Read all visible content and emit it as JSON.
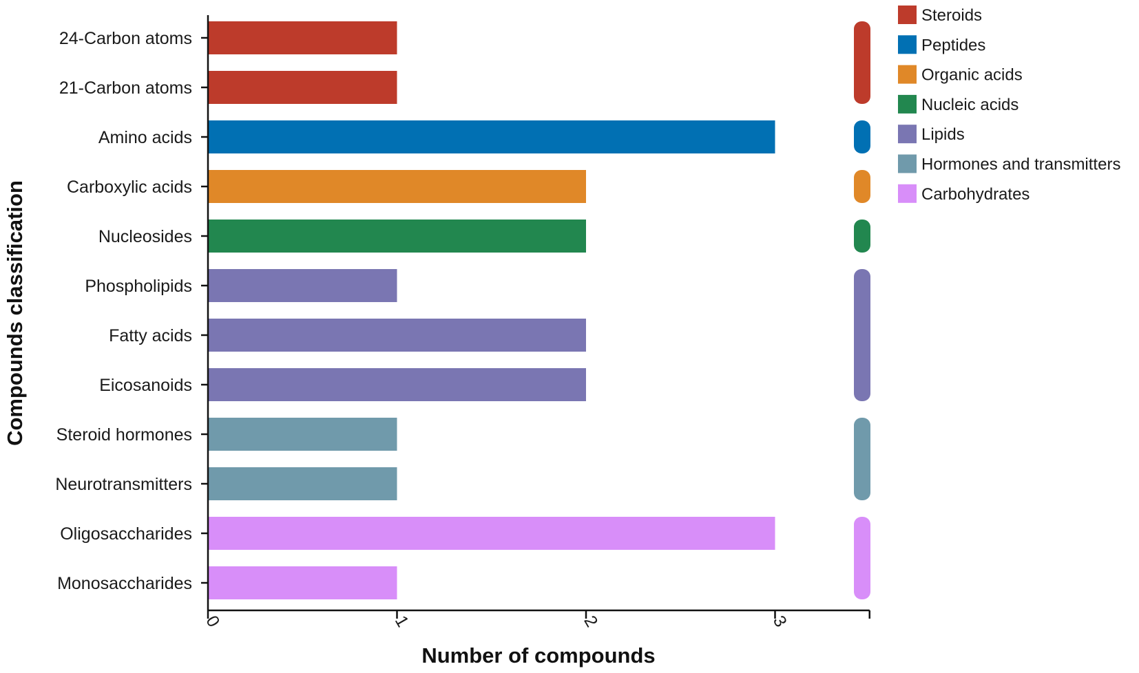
{
  "chart_data": {
    "type": "bar",
    "orientation": "horizontal",
    "xlabel": "Number of compounds",
    "ylabel": "Compounds classification",
    "xlim": [
      0,
      3.5
    ],
    "xticks": [
      "0",
      "1",
      "2",
      "3"
    ],
    "grid": false,
    "legend_position": "top-right",
    "categories": [
      "24-Carbon atoms",
      "21-Carbon atoms",
      "Amino acids",
      "Carboxylic acids",
      "Nucleosides",
      "Phospholipids",
      "Fatty acids",
      "Eicosanoids",
      "Steroid hormones",
      "Neurotransmitters",
      "Oligosaccharides",
      "Monosaccharides"
    ],
    "values": [
      1,
      1,
      3,
      2,
      2,
      1,
      2,
      2,
      1,
      1,
      3,
      1
    ],
    "groups": [
      "Steroids",
      "Steroids",
      "Peptides",
      "Organic acids",
      "Nucleic acids",
      "Lipids",
      "Lipids",
      "Lipids",
      "Hormones and transmitters",
      "Hormones and transmitters",
      "Carbohydrates",
      "Carbohydrates"
    ],
    "legend": [
      {
        "name": "Steroids",
        "color": "#BD3B2B"
      },
      {
        "name": "Peptides",
        "color": "#0170B3"
      },
      {
        "name": "Organic acids",
        "color": "#E08828"
      },
      {
        "name": "Nucleic acids",
        "color": "#22874F"
      },
      {
        "name": "Lipids",
        "color": "#7A76B2"
      },
      {
        "name": "Hormones and transmitters",
        "color": "#709AAB"
      },
      {
        "name": "Carbohydrates",
        "color": "#D88EF9"
      }
    ]
  }
}
